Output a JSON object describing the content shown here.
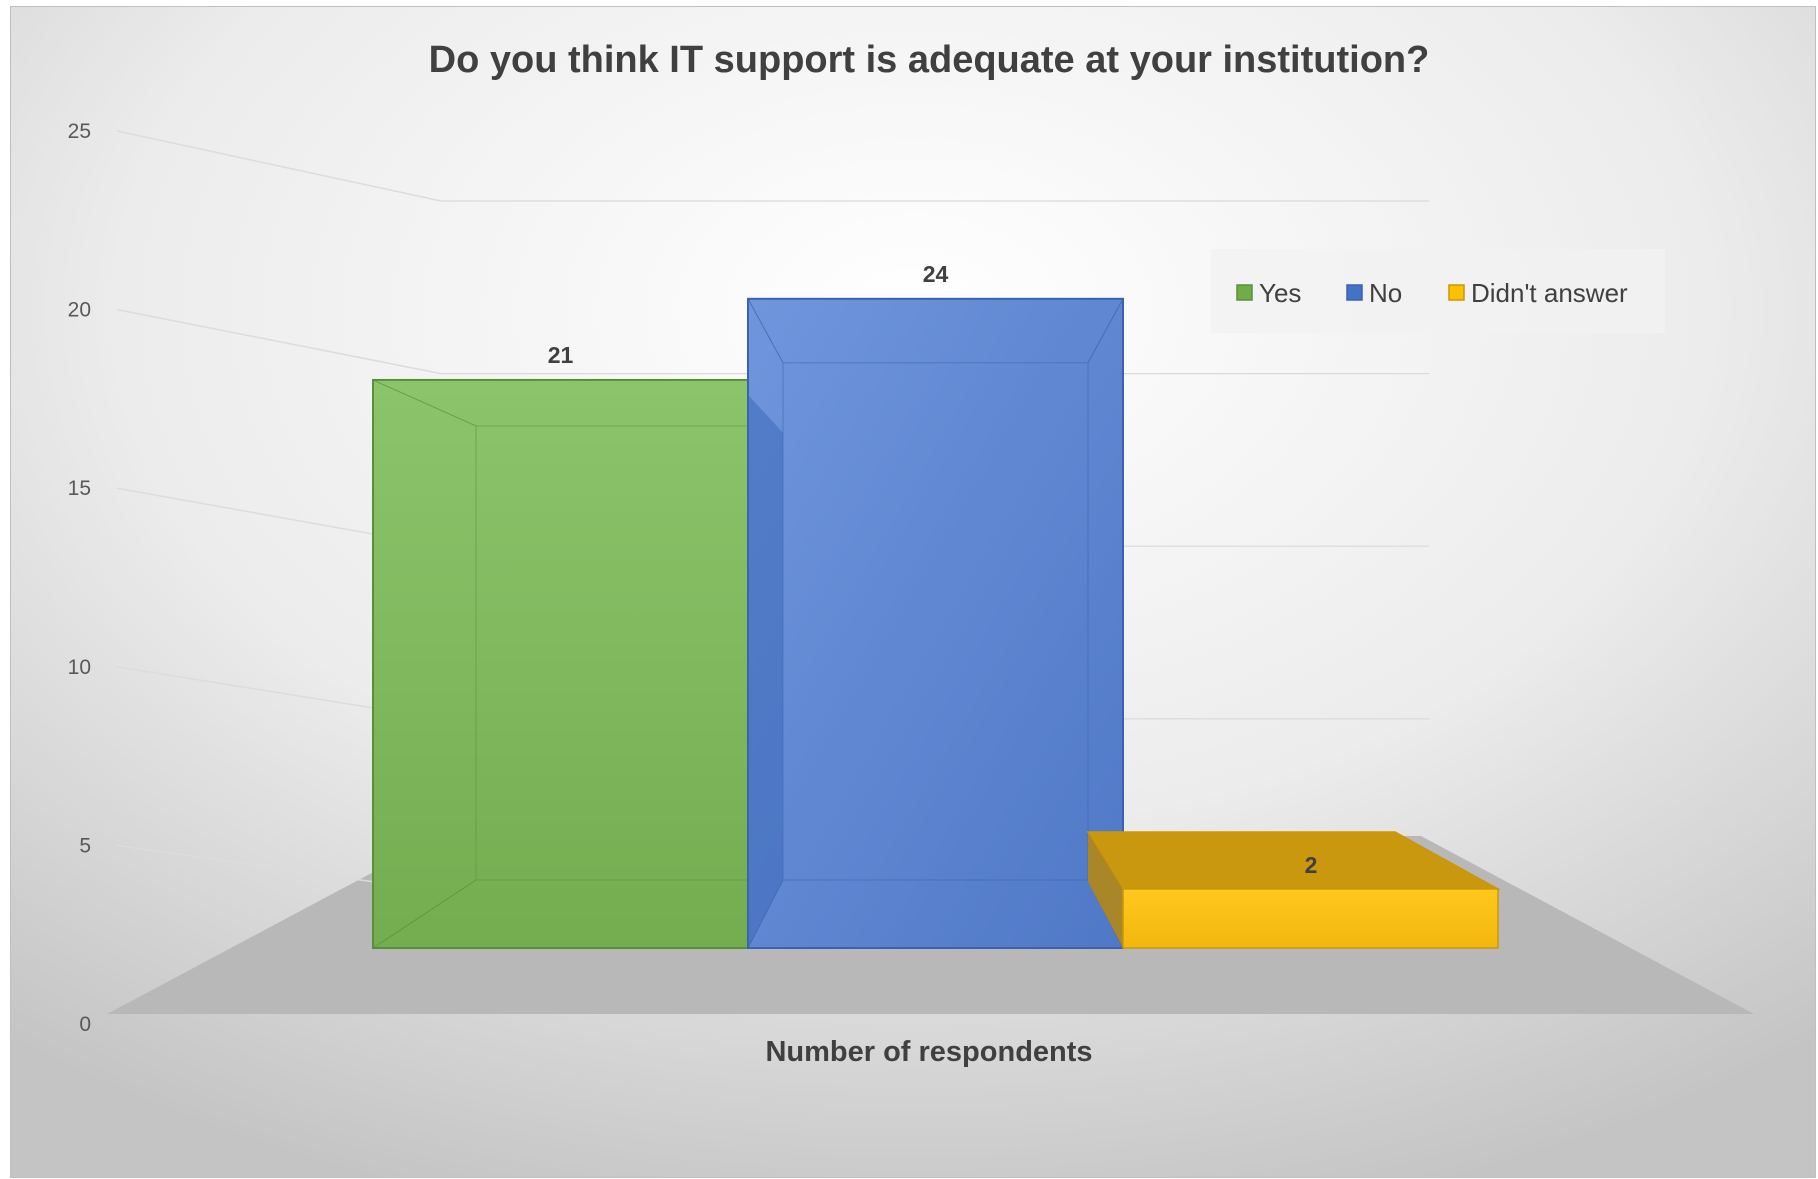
{
  "chart_data": {
    "type": "bar",
    "title": "Do you think IT support is adequate at your institution?",
    "xlabel": "Number of respondents",
    "ylabel": "",
    "categories": [
      "Number of respondents"
    ],
    "series": [
      {
        "name": "Yes",
        "values": [
          21
        ],
        "color": "#70ad47"
      },
      {
        "name": "No",
        "values": [
          24
        ],
        "color": "#4472c4"
      },
      {
        "name": "Didn't answer",
        "values": [
          2
        ],
        "color": "#ffc000"
      }
    ],
    "ylim": [
      0,
      25
    ],
    "yticks": [
      0,
      5,
      10,
      15,
      20,
      25
    ],
    "grid": true,
    "legend": "top-right",
    "style": "3d-clustered-column"
  }
}
